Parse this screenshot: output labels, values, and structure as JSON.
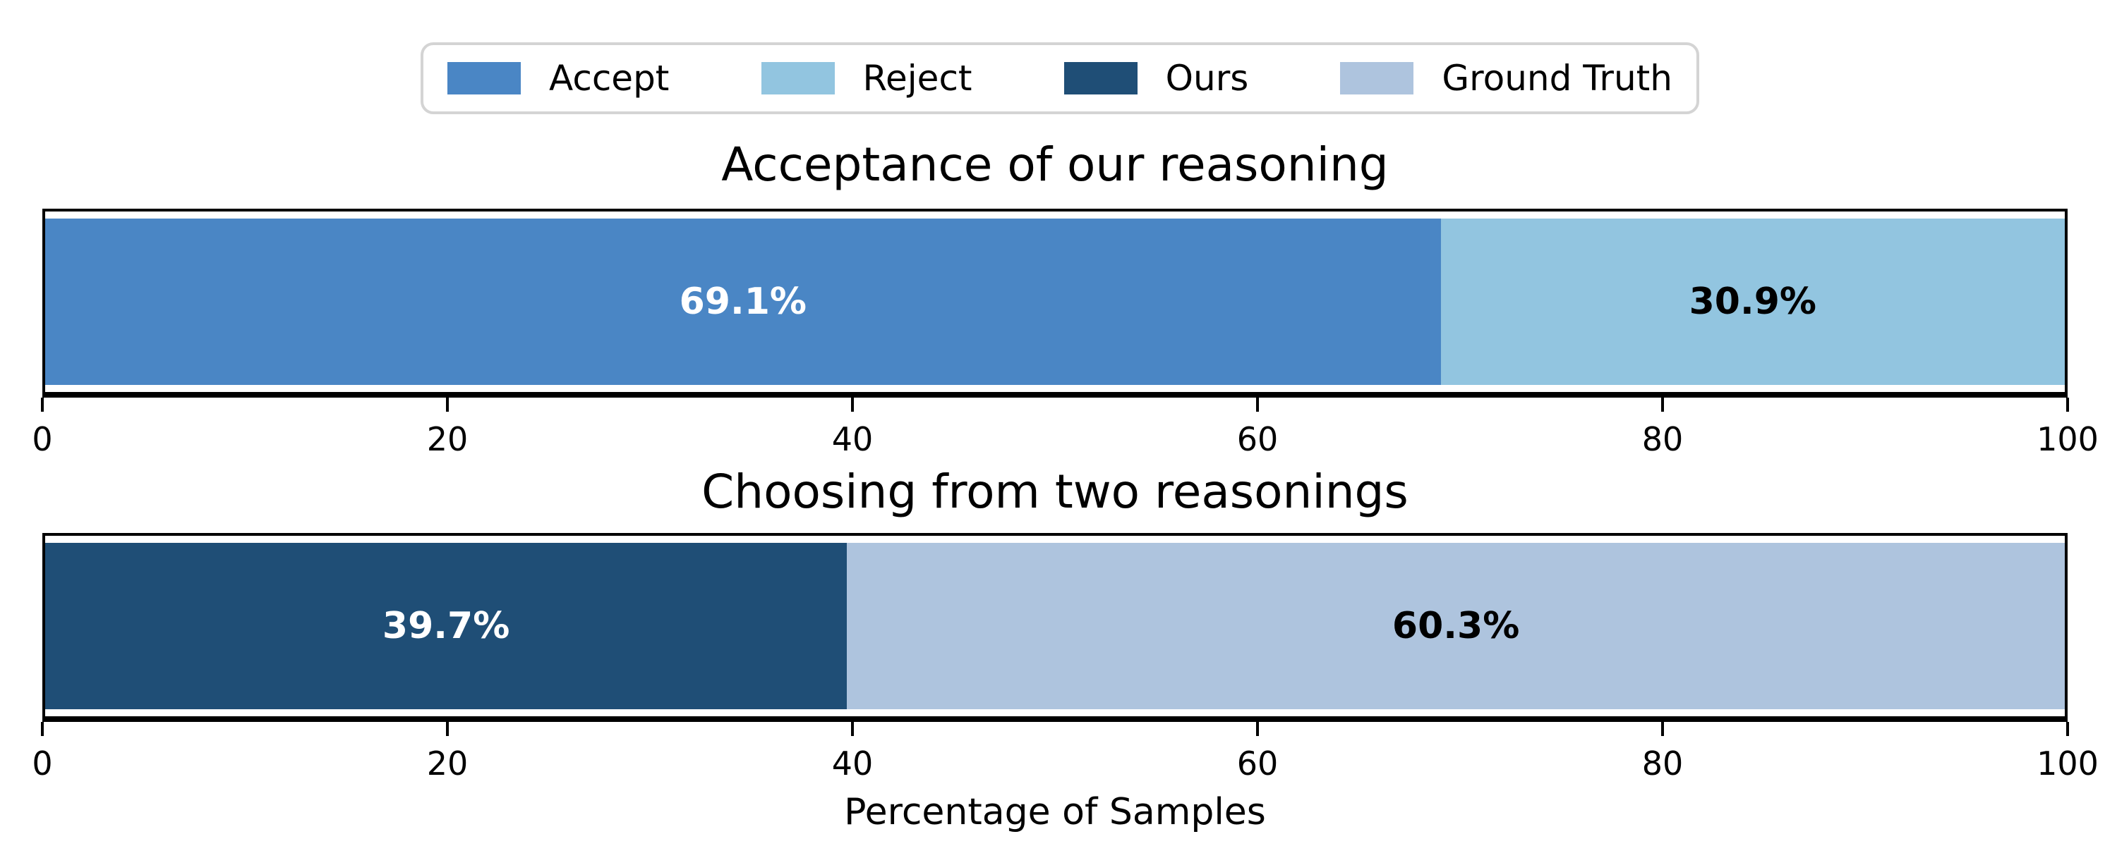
{
  "legend": {
    "items": [
      {
        "label": "Accept",
        "color": "#4a86c5",
        "icon": "legend-swatch-accept"
      },
      {
        "label": "Reject",
        "color": "#92c5e0",
        "icon": "legend-swatch-reject"
      },
      {
        "label": "Ours",
        "color": "#1f4e76",
        "icon": "legend-swatch-ours"
      },
      {
        "label": "Ground Truth",
        "color": "#aec4de",
        "icon": "legend-swatch-ground-truth"
      }
    ]
  },
  "xlabel": "Percentage of Samples",
  "chart_data": [
    {
      "type": "bar",
      "orientation": "horizontal-stacked",
      "title": "Acceptance of our reasoning",
      "categories": [
        "Accept",
        "Reject"
      ],
      "values": [
        69.1,
        30.9
      ],
      "segments": [
        {
          "label": "Accept",
          "value": 69.1,
          "display": "69.1%",
          "color": "#4a86c5",
          "text_color": "#ffffff"
        },
        {
          "label": "Reject",
          "value": 30.9,
          "display": "30.9%",
          "color": "#92c5e0",
          "text_color": "#000000"
        }
      ],
      "xlim": [
        0,
        100
      ],
      "xticks": [
        0,
        20,
        40,
        60,
        80,
        100
      ],
      "grid": false,
      "legend_position": "top-center-above-figure"
    },
    {
      "type": "bar",
      "orientation": "horizontal-stacked",
      "title": "Choosing from two reasonings",
      "categories": [
        "Ours",
        "Ground Truth"
      ],
      "values": [
        39.7,
        60.3
      ],
      "segments": [
        {
          "label": "Ours",
          "value": 39.7,
          "display": "39.7%",
          "color": "#1f4e76",
          "text_color": "#ffffff"
        },
        {
          "label": "Ground Truth",
          "value": 60.3,
          "display": "60.3%",
          "color": "#aec4de",
          "text_color": "#000000"
        }
      ],
      "xlim": [
        0,
        100
      ],
      "xticks": [
        0,
        20,
        40,
        60,
        80,
        100
      ],
      "grid": false,
      "xlabel": "Percentage of Samples"
    }
  ]
}
